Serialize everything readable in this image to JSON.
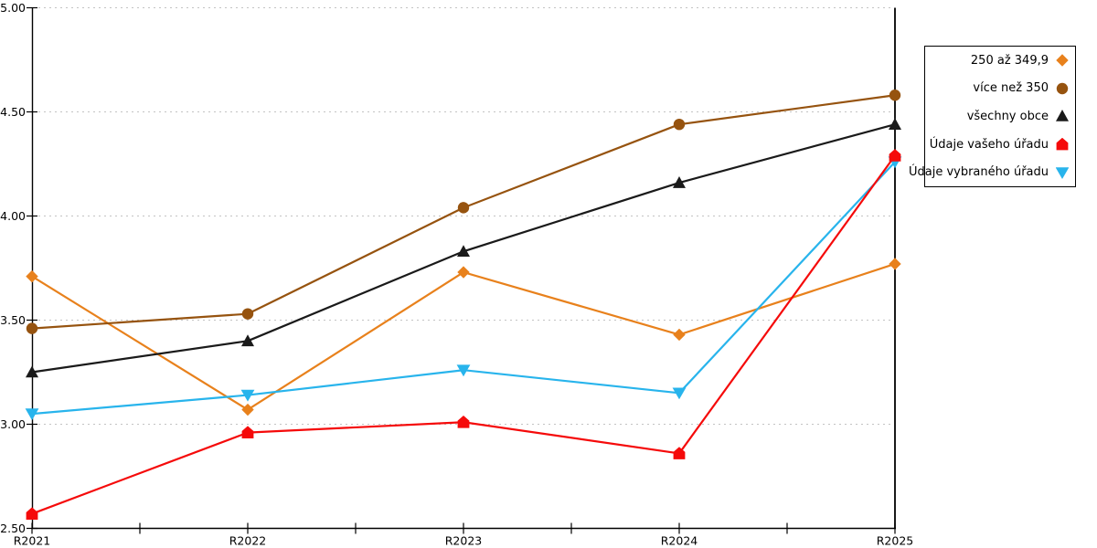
{
  "chart_data": {
    "type": "line",
    "title": "",
    "xlabel": "",
    "ylabel": "",
    "categories": [
      "R2021",
      "R2022",
      "R2023",
      "R2024",
      "R2025"
    ],
    "series": [
      {
        "name": "250 až 349,9",
        "color": "#E8811C",
        "marker": "diamond",
        "values": [
          3.71,
          3.07,
          3.73,
          3.43,
          3.77
        ]
      },
      {
        "name": "více než 350",
        "color": "#96530F",
        "marker": "circle",
        "values": [
          3.46,
          3.53,
          4.04,
          4.44,
          4.58
        ]
      },
      {
        "name": "všechny obce",
        "color": "#1A1A1A",
        "marker": "triangle-up",
        "values": [
          3.25,
          3.4,
          3.83,
          4.16,
          4.44
        ]
      },
      {
        "name": "Údaje vašeho úřadu",
        "color": "#F50A0A",
        "marker": "pentagon",
        "values": [
          2.57,
          2.96,
          3.01,
          2.86,
          4.29
        ]
      },
      {
        "name": "Údaje vybraného úřadu",
        "color": "#28B4EC",
        "marker": "triangle-down",
        "values": [
          3.05,
          3.14,
          3.26,
          3.15,
          4.26
        ]
      }
    ],
    "draw_order": [
      0,
      1,
      2,
      4,
      3
    ],
    "ylim": [
      2.5,
      5.0
    ],
    "yticks": [
      "2.50",
      "3.00",
      "3.50",
      "4.00",
      "4.50",
      "5.00"
    ],
    "grid": "horizontal-dashed",
    "legend_position": "right",
    "highlight_vline_at": "R2025",
    "axis_color": "#000000",
    "gridline_color": "#C3C3C3"
  }
}
